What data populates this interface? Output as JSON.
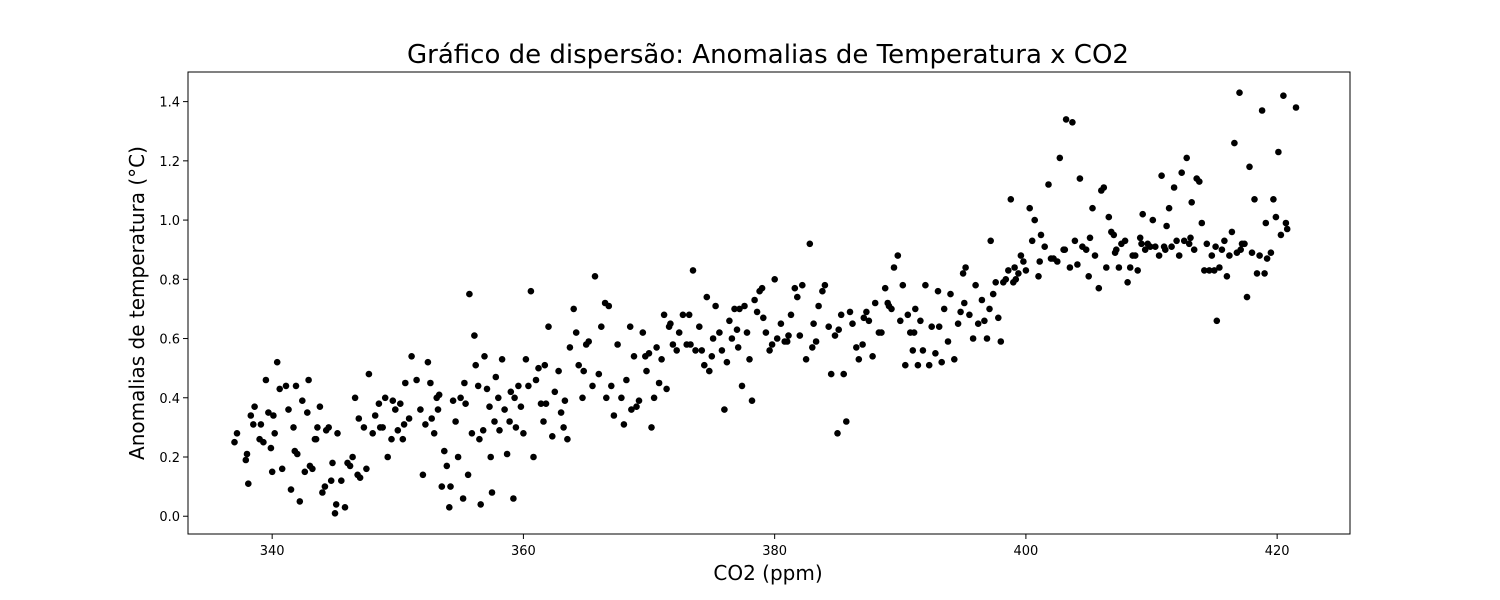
{
  "chart_data": {
    "type": "scatter",
    "title": "Gráfico de dispersão: Anomalias de Temperatura x CO2",
    "xlabel": "CO2 (ppm)",
    "ylabel": "Anomalias de temperatura (°C)",
    "xlim": [
      333.3,
      425.8
    ],
    "ylim": [
      -0.06,
      1.5
    ],
    "xticks": [
      340,
      360,
      380,
      400,
      420
    ],
    "yticks": [
      0.0,
      0.2,
      0.4,
      0.6,
      0.8,
      1.0,
      1.2,
      1.4
    ],
    "grid": false,
    "legend": "none",
    "marker_color": "#000000",
    "points": [
      [
        337.0,
        0.25
      ],
      [
        337.2,
        0.28
      ],
      [
        337.9,
        0.19
      ],
      [
        338.0,
        0.21
      ],
      [
        338.1,
        0.11
      ],
      [
        338.3,
        0.34
      ],
      [
        338.6,
        0.37
      ],
      [
        339.0,
        0.26
      ],
      [
        339.3,
        0.25
      ],
      [
        339.5,
        0.46
      ],
      [
        339.7,
        0.35
      ],
      [
        339.9,
        0.23
      ],
      [
        340.0,
        0.15
      ],
      [
        340.1,
        0.34
      ],
      [
        340.4,
        0.52
      ],
      [
        340.6,
        0.43
      ],
      [
        340.8,
        0.16
      ],
      [
        341.1,
        0.44
      ],
      [
        341.3,
        0.36
      ],
      [
        341.5,
        0.09
      ],
      [
        341.7,
        0.3
      ],
      [
        341.8,
        0.22
      ],
      [
        342.0,
        0.21
      ],
      [
        342.2,
        0.05
      ],
      [
        342.4,
        0.39
      ],
      [
        342.6,
        0.15
      ],
      [
        342.8,
        0.35
      ],
      [
        343.0,
        0.17
      ],
      [
        343.2,
        0.16
      ],
      [
        343.4,
        0.26
      ],
      [
        343.6,
        0.3
      ],
      [
        343.8,
        0.37
      ],
      [
        344.0,
        0.08
      ],
      [
        344.2,
        0.1
      ],
      [
        344.5,
        0.3
      ],
      [
        344.7,
        0.12
      ],
      [
        344.8,
        0.18
      ],
      [
        345.0,
        0.01
      ],
      [
        345.1,
        0.04
      ],
      [
        345.2,
        0.28
      ],
      [
        345.5,
        0.12
      ],
      [
        345.8,
        0.03
      ],
      [
        346.0,
        0.18
      ],
      [
        346.2,
        0.17
      ],
      [
        346.4,
        0.2
      ],
      [
        346.6,
        0.4
      ],
      [
        346.8,
        0.14
      ],
      [
        347.0,
        0.13
      ],
      [
        347.3,
        0.3
      ],
      [
        347.5,
        0.16
      ],
      [
        347.7,
        0.48
      ],
      [
        348.0,
        0.28
      ],
      [
        348.2,
        0.34
      ],
      [
        348.5,
        0.38
      ],
      [
        348.8,
        0.3
      ],
      [
        349.0,
        0.4
      ],
      [
        349.2,
        0.2
      ],
      [
        349.5,
        0.26
      ],
      [
        349.8,
        0.36
      ],
      [
        350.0,
        0.29
      ],
      [
        350.2,
        0.38
      ],
      [
        350.4,
        0.26
      ],
      [
        350.6,
        0.45
      ],
      [
        350.9,
        0.33
      ],
      [
        351.1,
        0.54
      ],
      [
        351.5,
        0.46
      ],
      [
        351.8,
        0.36
      ],
      [
        352.0,
        0.14
      ],
      [
        352.2,
        0.31
      ],
      [
        352.4,
        0.52
      ],
      [
        352.6,
        0.45
      ],
      [
        352.9,
        0.28
      ],
      [
        353.1,
        0.4
      ],
      [
        353.3,
        0.41
      ],
      [
        353.5,
        0.1
      ],
      [
        353.7,
        0.22
      ],
      [
        353.9,
        0.17
      ],
      [
        354.1,
        0.03
      ],
      [
        354.2,
        0.1
      ],
      [
        354.4,
        0.39
      ],
      [
        354.6,
        0.32
      ],
      [
        354.8,
        0.2
      ],
      [
        355.0,
        0.4
      ],
      [
        355.2,
        0.06
      ],
      [
        355.4,
        0.38
      ],
      [
        355.6,
        0.14
      ],
      [
        355.7,
        0.75
      ],
      [
        355.9,
        0.28
      ],
      [
        356.1,
        0.61
      ],
      [
        356.2,
        0.51
      ],
      [
        356.4,
        0.44
      ],
      [
        356.6,
        0.04
      ],
      [
        356.8,
        0.29
      ],
      [
        356.9,
        0.54
      ],
      [
        357.1,
        0.43
      ],
      [
        357.3,
        0.37
      ],
      [
        357.4,
        0.2
      ],
      [
        357.5,
        0.08
      ],
      [
        357.7,
        0.32
      ],
      [
        357.8,
        0.47
      ],
      [
        358.0,
        0.4
      ],
      [
        358.1,
        0.29
      ],
      [
        358.3,
        0.53
      ],
      [
        358.5,
        0.36
      ],
      [
        358.7,
        0.21
      ],
      [
        359.0,
        0.42
      ],
      [
        359.2,
        0.06
      ],
      [
        359.4,
        0.3
      ],
      [
        359.6,
        0.44
      ],
      [
        359.8,
        0.37
      ],
      [
        360.0,
        0.28
      ],
      [
        360.2,
        0.53
      ],
      [
        360.4,
        0.44
      ],
      [
        360.6,
        0.76
      ],
      [
        360.8,
        0.2
      ],
      [
        361.0,
        0.46
      ],
      [
        361.2,
        0.5
      ],
      [
        361.4,
        0.38
      ],
      [
        361.6,
        0.32
      ],
      [
        361.8,
        0.38
      ],
      [
        362.0,
        0.64
      ],
      [
        362.3,
        0.27
      ],
      [
        362.5,
        0.42
      ],
      [
        362.8,
        0.49
      ],
      [
        363.0,
        0.35
      ],
      [
        363.2,
        0.3
      ],
      [
        363.5,
        0.26
      ],
      [
        363.7,
        0.57
      ],
      [
        364.0,
        0.7
      ],
      [
        364.2,
        0.62
      ],
      [
        364.4,
        0.51
      ],
      [
        364.7,
        0.4
      ],
      [
        365.0,
        0.58
      ],
      [
        365.2,
        0.59
      ],
      [
        365.5,
        0.44
      ],
      [
        365.7,
        0.81
      ],
      [
        366.0,
        0.48
      ],
      [
        366.2,
        0.64
      ],
      [
        366.5,
        0.72
      ],
      [
        366.8,
        0.71
      ],
      [
        367.0,
        0.44
      ],
      [
        367.2,
        0.34
      ],
      [
        367.5,
        0.58
      ],
      [
        367.8,
        0.4
      ],
      [
        368.0,
        0.31
      ],
      [
        368.2,
        0.46
      ],
      [
        368.5,
        0.64
      ],
      [
        368.8,
        0.54
      ],
      [
        369.0,
        0.37
      ],
      [
        369.2,
        0.39
      ],
      [
        369.5,
        0.62
      ],
      [
        369.8,
        0.49
      ],
      [
        370.0,
        0.55
      ],
      [
        370.2,
        0.3
      ],
      [
        370.4,
        0.4
      ],
      [
        370.6,
        0.57
      ],
      [
        370.8,
        0.45
      ],
      [
        371.0,
        0.53
      ],
      [
        371.2,
        0.68
      ],
      [
        371.4,
        0.43
      ],
      [
        371.7,
        0.65
      ],
      [
        371.9,
        0.58
      ],
      [
        372.2,
        0.56
      ],
      [
        372.4,
        0.62
      ],
      [
        372.7,
        0.68
      ],
      [
        373.0,
        0.58
      ],
      [
        373.2,
        0.68
      ],
      [
        373.5,
        0.83
      ],
      [
        373.7,
        0.56
      ],
      [
        374.0,
        0.64
      ],
      [
        374.2,
        0.56
      ],
      [
        374.4,
        0.51
      ],
      [
        374.6,
        0.74
      ],
      [
        374.8,
        0.49
      ],
      [
        375.0,
        0.54
      ],
      [
        375.3,
        0.71
      ],
      [
        375.6,
        0.62
      ],
      [
        375.8,
        0.56
      ],
      [
        376.0,
        0.36
      ],
      [
        376.2,
        0.52
      ],
      [
        376.4,
        0.66
      ],
      [
        376.6,
        0.6
      ],
      [
        376.8,
        0.7
      ],
      [
        377.0,
        0.63
      ],
      [
        377.2,
        0.7
      ],
      [
        377.4,
        0.44
      ],
      [
        377.6,
        0.71
      ],
      [
        377.8,
        0.62
      ],
      [
        378.0,
        0.53
      ],
      [
        378.2,
        0.39
      ],
      [
        378.4,
        0.73
      ],
      [
        378.6,
        0.69
      ],
      [
        378.8,
        0.76
      ],
      [
        379.0,
        0.77
      ],
      [
        379.3,
        0.62
      ],
      [
        379.6,
        0.56
      ],
      [
        379.8,
        0.58
      ],
      [
        380.0,
        0.8
      ],
      [
        380.2,
        0.6
      ],
      [
        380.5,
        0.65
      ],
      [
        380.8,
        0.59
      ],
      [
        381.0,
        0.59
      ],
      [
        381.3,
        0.68
      ],
      [
        381.6,
        0.77
      ],
      [
        381.8,
        0.74
      ],
      [
        382.0,
        0.61
      ],
      [
        382.2,
        0.78
      ],
      [
        382.5,
        0.53
      ],
      [
        382.8,
        0.92
      ],
      [
        383.0,
        0.57
      ],
      [
        383.3,
        0.59
      ],
      [
        383.5,
        0.71
      ],
      [
        383.8,
        0.76
      ],
      [
        384.0,
        0.78
      ],
      [
        384.3,
        0.64
      ],
      [
        384.5,
        0.48
      ],
      [
        384.8,
        0.61
      ],
      [
        385.0,
        0.28
      ],
      [
        385.3,
        0.68
      ],
      [
        385.5,
        0.48
      ],
      [
        385.7,
        0.32
      ],
      [
        386.0,
        0.69
      ],
      [
        386.2,
        0.65
      ],
      [
        386.5,
        0.57
      ],
      [
        386.7,
        0.53
      ],
      [
        387.0,
        0.58
      ],
      [
        387.3,
        0.69
      ],
      [
        387.5,
        0.66
      ],
      [
        387.8,
        0.54
      ],
      [
        388.0,
        0.72
      ],
      [
        388.3,
        0.62
      ],
      [
        388.5,
        0.62
      ],
      [
        388.8,
        0.77
      ],
      [
        389.0,
        0.72
      ],
      [
        389.3,
        0.7
      ],
      [
        389.5,
        0.84
      ],
      [
        389.8,
        0.88
      ],
      [
        390.0,
        0.66
      ],
      [
        390.2,
        0.78
      ],
      [
        390.4,
        0.51
      ],
      [
        390.6,
        0.68
      ],
      [
        390.8,
        0.62
      ],
      [
        391.0,
        0.56
      ],
      [
        391.2,
        0.7
      ],
      [
        391.4,
        0.51
      ],
      [
        391.6,
        0.66
      ],
      [
        391.8,
        0.56
      ],
      [
        392.0,
        0.78
      ],
      [
        392.3,
        0.51
      ],
      [
        392.5,
        0.64
      ],
      [
        392.8,
        0.55
      ],
      [
        393.0,
        0.76
      ],
      [
        393.3,
        0.52
      ],
      [
        393.5,
        0.7
      ],
      [
        393.8,
        0.59
      ],
      [
        394.0,
        0.75
      ],
      [
        394.3,
        0.53
      ],
      [
        394.6,
        0.65
      ],
      [
        394.8,
        0.69
      ],
      [
        395.0,
        0.82
      ],
      [
        395.2,
        0.84
      ],
      [
        395.5,
        0.68
      ],
      [
        395.8,
        0.6
      ],
      [
        396.0,
        0.78
      ],
      [
        396.2,
        0.65
      ],
      [
        396.5,
        0.73
      ],
      [
        396.7,
        0.66
      ],
      [
        396.9,
        0.6
      ],
      [
        397.2,
        0.93
      ],
      [
        397.4,
        0.75
      ],
      [
        397.6,
        0.79
      ],
      [
        397.8,
        0.67
      ],
      [
        398.0,
        0.59
      ],
      [
        398.2,
        0.79
      ],
      [
        398.4,
        0.8
      ],
      [
        398.6,
        0.83
      ],
      [
        398.8,
        1.07
      ],
      [
        399.0,
        0.79
      ],
      [
        399.2,
        0.8
      ],
      [
        399.4,
        0.82
      ],
      [
        399.6,
        0.88
      ],
      [
        399.8,
        0.86
      ],
      [
        400.0,
        0.83
      ],
      [
        400.3,
        1.04
      ],
      [
        400.5,
        0.93
      ],
      [
        400.7,
        1.0
      ],
      [
        401.0,
        0.81
      ],
      [
        401.2,
        0.95
      ],
      [
        401.5,
        0.91
      ],
      [
        401.8,
        1.12
      ],
      [
        402.0,
        0.87
      ],
      [
        402.2,
        0.87
      ],
      [
        402.5,
        0.86
      ],
      [
        402.7,
        1.21
      ],
      [
        403.0,
        0.9
      ],
      [
        403.2,
        1.34
      ],
      [
        403.5,
        0.84
      ],
      [
        403.7,
        1.33
      ],
      [
        403.9,
        0.93
      ],
      [
        404.1,
        0.85
      ],
      [
        404.3,
        1.14
      ],
      [
        404.5,
        0.91
      ],
      [
        404.8,
        0.9
      ],
      [
        405.0,
        0.81
      ],
      [
        405.3,
        1.04
      ],
      [
        405.5,
        0.88
      ],
      [
        405.8,
        0.77
      ],
      [
        406.0,
        1.1
      ],
      [
        406.2,
        1.11
      ],
      [
        406.4,
        0.84
      ],
      [
        406.6,
        1.01
      ],
      [
        406.8,
        0.96
      ],
      [
        407.0,
        0.95
      ],
      [
        407.2,
        0.9
      ],
      [
        407.4,
        0.84
      ],
      [
        407.6,
        0.92
      ],
      [
        407.9,
        0.93
      ],
      [
        408.1,
        0.79
      ],
      [
        408.3,
        0.84
      ],
      [
        408.5,
        0.88
      ],
      [
        408.7,
        0.88
      ],
      [
        408.9,
        0.83
      ],
      [
        409.1,
        0.94
      ],
      [
        409.3,
        1.02
      ],
      [
        409.5,
        0.9
      ],
      [
        409.7,
        0.92
      ],
      [
        409.9,
        0.91
      ],
      [
        410.1,
        1.0
      ],
      [
        410.3,
        0.91
      ],
      [
        410.6,
        0.88
      ],
      [
        410.8,
        1.15
      ],
      [
        411.0,
        0.91
      ],
      [
        411.2,
        0.98
      ],
      [
        411.4,
        1.04
      ],
      [
        411.6,
        0.91
      ],
      [
        411.8,
        1.11
      ],
      [
        412.0,
        0.93
      ],
      [
        412.2,
        0.88
      ],
      [
        412.4,
        1.16
      ],
      [
        412.6,
        0.93
      ],
      [
        412.8,
        1.21
      ],
      [
        413.0,
        0.92
      ],
      [
        413.2,
        1.06
      ],
      [
        413.4,
        0.9
      ],
      [
        413.6,
        1.14
      ],
      [
        413.8,
        1.13
      ],
      [
        414.0,
        0.99
      ],
      [
        414.2,
        0.83
      ],
      [
        414.4,
        0.92
      ],
      [
        414.6,
        0.83
      ],
      [
        414.8,
        0.88
      ],
      [
        415.0,
        0.83
      ],
      [
        415.2,
        0.66
      ],
      [
        415.4,
        0.84
      ],
      [
        415.6,
        0.9
      ],
      [
        415.8,
        0.93
      ],
      [
        416.0,
        0.81
      ],
      [
        416.2,
        0.88
      ],
      [
        416.4,
        0.96
      ],
      [
        416.6,
        1.26
      ],
      [
        416.8,
        0.89
      ],
      [
        417.0,
        1.43
      ],
      [
        417.2,
        0.92
      ],
      [
        417.4,
        0.92
      ],
      [
        417.6,
        0.74
      ],
      [
        417.8,
        1.18
      ],
      [
        418.0,
        0.89
      ],
      [
        418.2,
        1.07
      ],
      [
        418.4,
        0.82
      ],
      [
        418.6,
        0.88
      ],
      [
        418.8,
        1.37
      ],
      [
        419.0,
        0.82
      ],
      [
        419.2,
        0.87
      ],
      [
        419.5,
        0.89
      ],
      [
        419.7,
        1.07
      ],
      [
        419.9,
        1.01
      ],
      [
        420.1,
        1.23
      ],
      [
        420.3,
        0.95
      ],
      [
        420.5,
        1.42
      ],
      [
        420.7,
        0.99
      ],
      [
        420.8,
        0.97
      ],
      [
        421.5,
        1.38
      ],
      [
        338.5,
        0.31
      ],
      [
        339.1,
        0.31
      ],
      [
        340.2,
        0.28
      ],
      [
        341.9,
        0.44
      ],
      [
        342.9,
        0.46
      ],
      [
        343.5,
        0.26
      ],
      [
        344.3,
        0.29
      ],
      [
        346.9,
        0.33
      ],
      [
        348.6,
        0.3
      ],
      [
        349.6,
        0.39
      ],
      [
        350.5,
        0.31
      ],
      [
        352.7,
        0.33
      ],
      [
        353.2,
        0.36
      ],
      [
        355.3,
        0.45
      ],
      [
        356.5,
        0.26
      ],
      [
        358.9,
        0.32
      ],
      [
        359.3,
        0.4
      ],
      [
        361.7,
        0.51
      ],
      [
        363.3,
        0.39
      ],
      [
        364.8,
        0.49
      ],
      [
        366.6,
        0.4
      ],
      [
        368.6,
        0.36
      ],
      [
        369.7,
        0.54
      ],
      [
        371.6,
        0.64
      ],
      [
        373.3,
        0.58
      ],
      [
        375.1,
        0.6
      ],
      [
        377.1,
        0.57
      ],
      [
        379.1,
        0.67
      ],
      [
        381.1,
        0.61
      ],
      [
        383.1,
        0.65
      ],
      [
        385.1,
        0.63
      ],
      [
        387.1,
        0.67
      ],
      [
        389.1,
        0.71
      ],
      [
        391.1,
        0.62
      ],
      [
        393.1,
        0.64
      ],
      [
        395.1,
        0.72
      ],
      [
        397.1,
        0.7
      ],
      [
        399.1,
        0.84
      ],
      [
        401.1,
        0.86
      ],
      [
        403.1,
        0.9
      ],
      [
        405.1,
        0.94
      ],
      [
        407.1,
        0.89
      ],
      [
        409.2,
        0.92
      ],
      [
        411.1,
        0.9
      ],
      [
        413.1,
        0.94
      ],
      [
        415.1,
        0.91
      ],
      [
        417.1,
        0.9
      ],
      [
        419.1,
        0.99
      ]
    ]
  }
}
